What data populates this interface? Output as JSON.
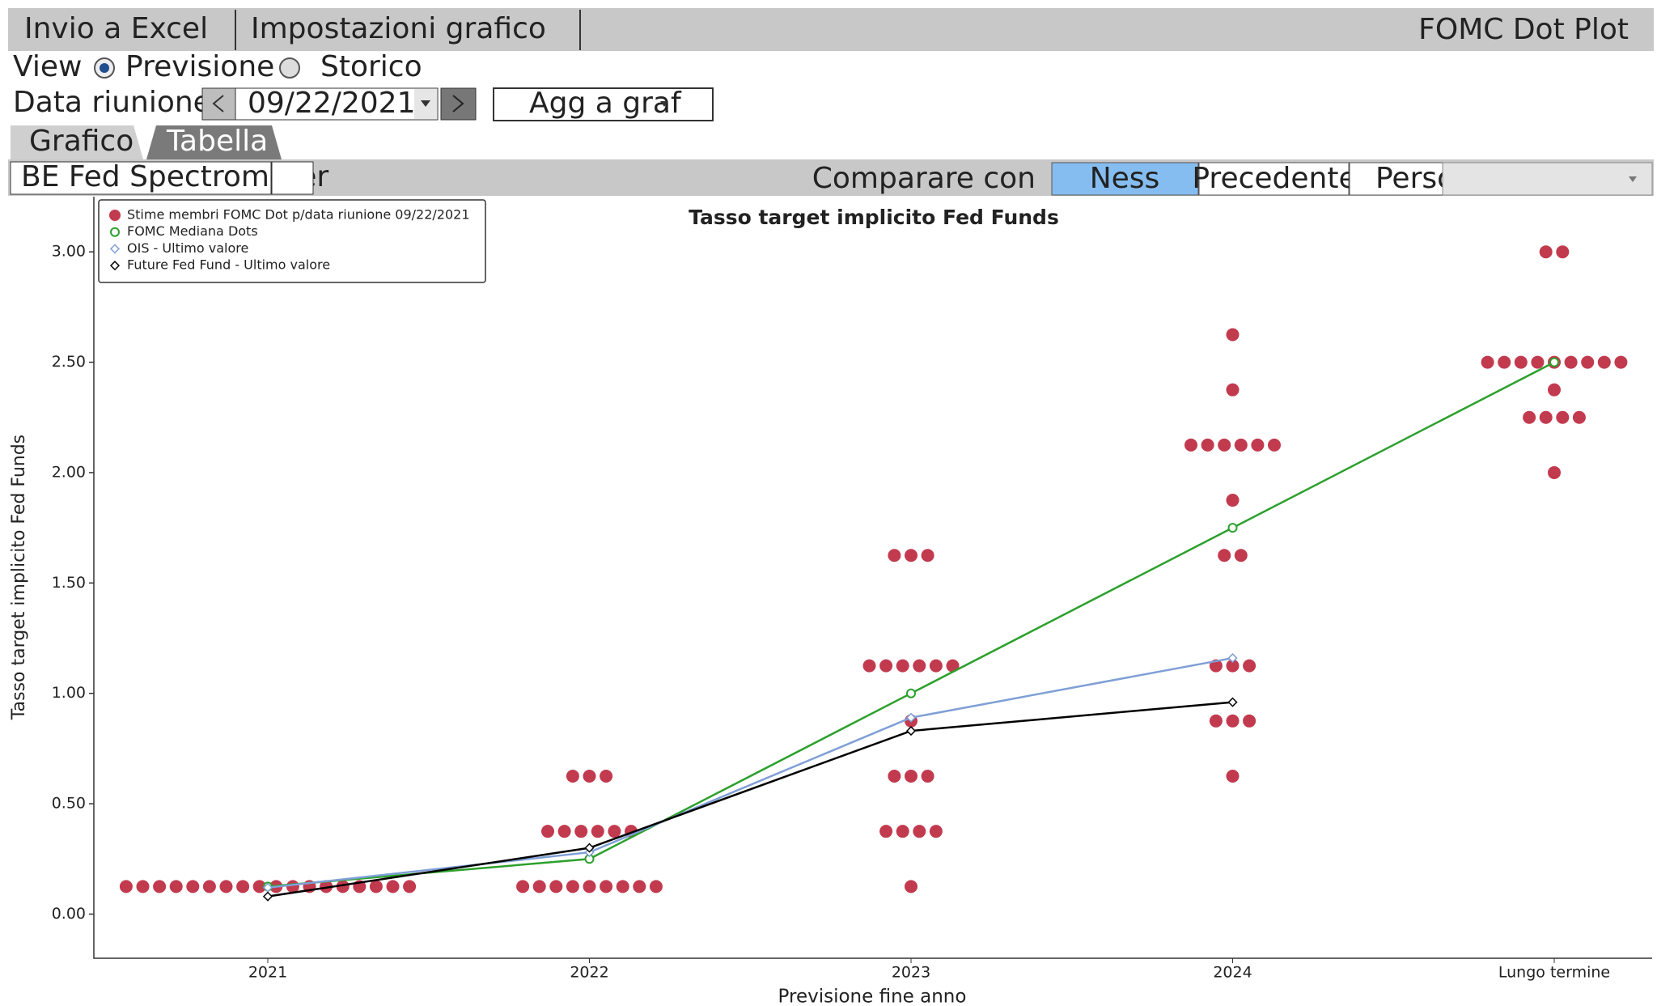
{
  "toolbar": {
    "export": "Invio a Excel",
    "settings": "Impostazioni grafico",
    "title": "FOMC Dot Plot"
  },
  "view": {
    "label": "View",
    "options": [
      "Previsione",
      "Storico"
    ]
  },
  "meeting": {
    "label": "Data riunione",
    "date": "09/22/2021",
    "add_button": "Agg a graf"
  },
  "tabs": [
    "Grafico",
    "Tabella"
  ],
  "compare": {
    "source": "BE Fed Spectrometer",
    "label": "Comparare con",
    "options": [
      "Ness",
      "Precedente",
      "Perso"
    ]
  },
  "chart_data": {
    "type": "dotplot",
    "title": "Tasso target implicito Fed Funds",
    "xlabel": "Previsione fine anno",
    "ylabel": "Tasso target implicito Fed Funds",
    "categories": [
      "2021",
      "2022",
      "2023",
      "2024",
      "Lungo termine"
    ],
    "ylim": [
      -0.2,
      3.25
    ],
    "yticks": [
      {
        "value": 0,
        "label": "0.00"
      },
      {
        "value": 0.5,
        "label": "0.50"
      },
      {
        "value": 1,
        "label": "1.00"
      },
      {
        "value": 1.5,
        "label": "1.50"
      },
      {
        "value": 2,
        "label": "2.00"
      },
      {
        "value": 2.5,
        "label": "2.50"
      },
      {
        "value": 3,
        "label": "3.00"
      }
    ],
    "series": [
      {
        "name": "Stime membri FOMC Dot p/data riunione 09/22/2021",
        "color": "#c23a4e",
        "style": "dots",
        "values": [
          [
            0.125,
            0.125,
            0.125,
            0.125,
            0.125,
            0.125,
            0.125,
            0.125,
            0.125,
            0.125,
            0.125,
            0.125,
            0.125,
            0.125,
            0.125,
            0.125,
            0.125,
            0.125
          ],
          [
            0.625,
            0.625,
            0.625,
            0.375,
            0.375,
            0.375,
            0.375,
            0.375,
            0.375,
            0.125,
            0.125,
            0.125,
            0.125,
            0.125,
            0.125,
            0.125,
            0.125,
            0.125
          ],
          [
            1.625,
            1.625,
            1.625,
            1.125,
            1.125,
            1.125,
            1.125,
            1.125,
            1.125,
            0.875,
            0.625,
            0.625,
            0.625,
            0.375,
            0.375,
            0.375,
            0.375,
            0.125
          ],
          [
            2.625,
            2.375,
            2.125,
            2.125,
            2.125,
            2.125,
            2.125,
            2.125,
            1.875,
            1.625,
            1.625,
            1.125,
            1.125,
            1.125,
            0.875,
            0.875,
            0.875,
            0.625
          ],
          [
            3,
            3,
            2.5,
            2.5,
            2.5,
            2.5,
            2.5,
            2.5,
            2.5,
            2.5,
            2.5,
            2.375,
            2.25,
            2.25,
            2.25,
            2.25,
            2
          ]
        ]
      },
      {
        "name": "FOMC Mediana Dots",
        "color": "#2ca02c",
        "style": "line",
        "marker": "circle",
        "values": [
          0.125,
          0.25,
          1,
          1.75,
          2.5
        ]
      },
      {
        "name": "OIS - Ultimo valore",
        "color": "#7f9fd6",
        "style": "line",
        "marker": "diamond",
        "values": [
          0.12,
          0.28,
          0.89,
          1.16,
          null
        ]
      },
      {
        "name": "Future Fed Fund - Ultimo valore",
        "color": "#000000",
        "style": "line",
        "marker": "diamond",
        "values": [
          0.08,
          0.3,
          0.83,
          0.96,
          null
        ]
      }
    ]
  }
}
